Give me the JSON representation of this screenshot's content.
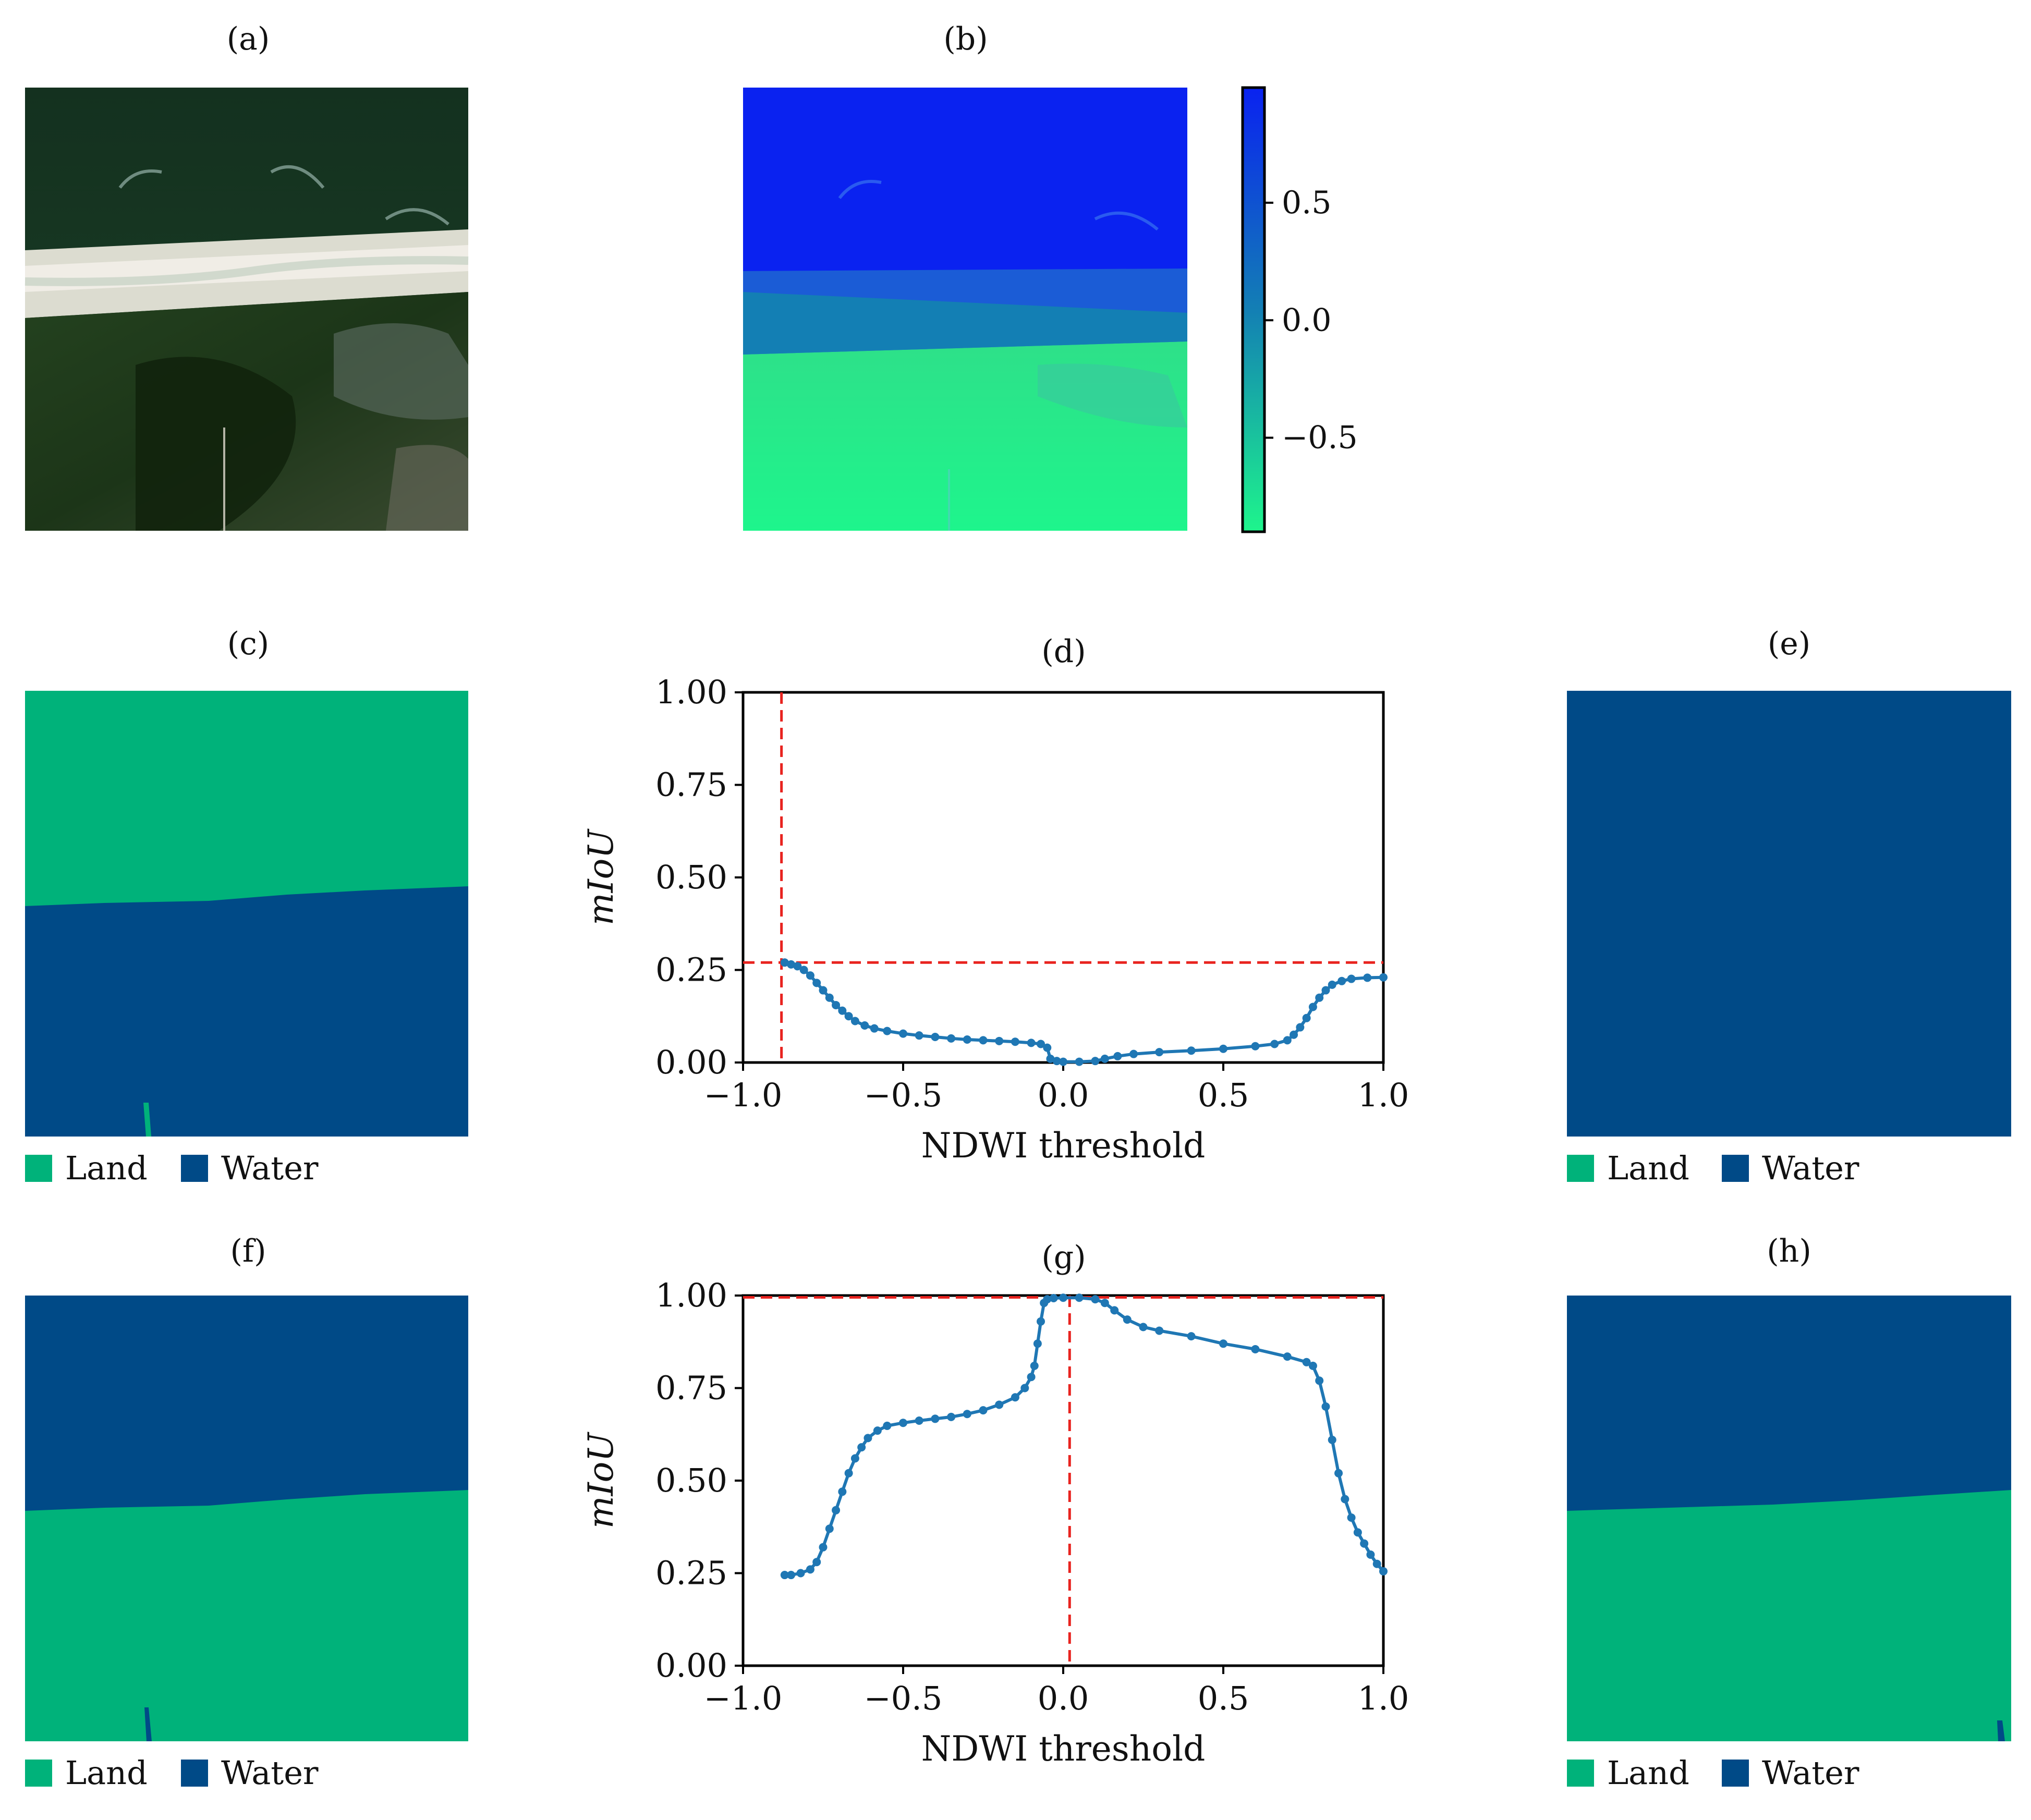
{
  "panels": {
    "a": {
      "label": "(a)"
    },
    "b": {
      "label": "(b)",
      "colorbar": {
        "ticks": [
          0.5,
          0.0,
          -0.5
        ],
        "tick_labels": [
          "0.5",
          "0.0",
          "−0.5"
        ],
        "range": [
          -0.9,
          0.99
        ]
      }
    },
    "c": {
      "label": "(c)",
      "legend": [
        "Land",
        "Water"
      ]
    },
    "d": {
      "label": "(d)"
    },
    "e": {
      "label": "(e)",
      "legend": [
        "Land",
        "Water"
      ]
    },
    "f": {
      "label": "(f)",
      "legend": [
        "Land",
        "Water"
      ]
    },
    "g": {
      "label": "(g)"
    },
    "h": {
      "label": "(h)",
      "legend": [
        "Land",
        "Water"
      ]
    }
  },
  "colors": {
    "land": "#00b27a",
    "water": "#004a87",
    "curve": "#1f77b4",
    "reference": "#e8231f",
    "ndwi_high": "#0a22f0",
    "ndwi_mid": "#137fb4",
    "ndwi_low": "#1ef58c"
  },
  "chart_data": [
    {
      "id": "d",
      "type": "line",
      "title": "(d)",
      "xlabel": "NDWI threshold",
      "ylabel": "mIoU",
      "xlim": [
        -1.0,
        1.0
      ],
      "ylim": [
        0.0,
        1.0
      ],
      "xticks": [
        -1.0,
        -0.5,
        0.0,
        0.5,
        1.0
      ],
      "xtick_labels": [
        "−1.0",
        "−0.5",
        "0.0",
        "0.5",
        "1.0"
      ],
      "yticks": [
        0.0,
        0.25,
        0.5,
        0.75,
        1.0
      ],
      "ytick_labels": [
        "0.00",
        "0.25",
        "0.50",
        "0.75",
        "1.00"
      ],
      "best_threshold": -0.88,
      "best_miou": 0.27,
      "points": [
        [
          -0.87,
          0.27
        ],
        [
          -0.85,
          0.265
        ],
        [
          -0.83,
          0.26
        ],
        [
          -0.81,
          0.25
        ],
        [
          -0.79,
          0.235
        ],
        [
          -0.77,
          0.215
        ],
        [
          -0.75,
          0.195
        ],
        [
          -0.73,
          0.175
        ],
        [
          -0.71,
          0.155
        ],
        [
          -0.69,
          0.14
        ],
        [
          -0.67,
          0.125
        ],
        [
          -0.65,
          0.112
        ],
        [
          -0.62,
          0.1
        ],
        [
          -0.59,
          0.092
        ],
        [
          -0.55,
          0.085
        ],
        [
          -0.5,
          0.078
        ],
        [
          -0.45,
          0.073
        ],
        [
          -0.4,
          0.069
        ],
        [
          -0.35,
          0.065
        ],
        [
          -0.3,
          0.062
        ],
        [
          -0.25,
          0.06
        ],
        [
          -0.2,
          0.058
        ],
        [
          -0.15,
          0.056
        ],
        [
          -0.1,
          0.053
        ],
        [
          -0.07,
          0.05
        ],
        [
          -0.05,
          0.04
        ],
        [
          -0.04,
          0.01
        ],
        [
          -0.02,
          0.004
        ],
        [
          0.0,
          0.002
        ],
        [
          0.05,
          0.002
        ],
        [
          0.1,
          0.004
        ],
        [
          0.13,
          0.01
        ],
        [
          0.17,
          0.017
        ],
        [
          0.22,
          0.023
        ],
        [
          0.3,
          0.028
        ],
        [
          0.4,
          0.032
        ],
        [
          0.5,
          0.037
        ],
        [
          0.6,
          0.044
        ],
        [
          0.66,
          0.05
        ],
        [
          0.7,
          0.06
        ],
        [
          0.72,
          0.075
        ],
        [
          0.74,
          0.095
        ],
        [
          0.76,
          0.12
        ],
        [
          0.78,
          0.15
        ],
        [
          0.8,
          0.175
        ],
        [
          0.82,
          0.195
        ],
        [
          0.84,
          0.21
        ],
        [
          0.87,
          0.22
        ],
        [
          0.9,
          0.226
        ],
        [
          0.95,
          0.229
        ],
        [
          1.0,
          0.23
        ]
      ]
    },
    {
      "id": "g",
      "type": "line",
      "title": "(g)",
      "xlabel": "NDWI threshold",
      "ylabel": "mIoU",
      "xlim": [
        -1.0,
        1.0
      ],
      "ylim": [
        0.0,
        1.0
      ],
      "xticks": [
        -1.0,
        -0.5,
        0.0,
        0.5,
        1.0
      ],
      "xtick_labels": [
        "−1.0",
        "−0.5",
        "0.0",
        "0.5",
        "1.0"
      ],
      "yticks": [
        0.0,
        0.25,
        0.5,
        0.75,
        1.0
      ],
      "ytick_labels": [
        "0.00",
        "0.25",
        "0.50",
        "0.75",
        "1.00"
      ],
      "best_threshold": 0.02,
      "best_miou": 0.995,
      "points": [
        [
          -0.87,
          0.245
        ],
        [
          -0.85,
          0.245
        ],
        [
          -0.82,
          0.25
        ],
        [
          -0.79,
          0.26
        ],
        [
          -0.77,
          0.28
        ],
        [
          -0.75,
          0.32
        ],
        [
          -0.73,
          0.37
        ],
        [
          -0.71,
          0.42
        ],
        [
          -0.69,
          0.47
        ],
        [
          -0.67,
          0.52
        ],
        [
          -0.65,
          0.56
        ],
        [
          -0.63,
          0.59
        ],
        [
          -0.61,
          0.615
        ],
        [
          -0.58,
          0.635
        ],
        [
          -0.55,
          0.648
        ],
        [
          -0.5,
          0.656
        ],
        [
          -0.45,
          0.662
        ],
        [
          -0.4,
          0.667
        ],
        [
          -0.35,
          0.672
        ],
        [
          -0.3,
          0.68
        ],
        [
          -0.25,
          0.69
        ],
        [
          -0.2,
          0.705
        ],
        [
          -0.15,
          0.725
        ],
        [
          -0.12,
          0.75
        ],
        [
          -0.1,
          0.78
        ],
        [
          -0.09,
          0.81
        ],
        [
          -0.08,
          0.87
        ],
        [
          -0.07,
          0.93
        ],
        [
          -0.06,
          0.98
        ],
        [
          -0.05,
          0.99
        ],
        [
          -0.03,
          0.993
        ],
        [
          0.0,
          0.994
        ],
        [
          0.05,
          0.994
        ],
        [
          0.1,
          0.99
        ],
        [
          0.13,
          0.98
        ],
        [
          0.16,
          0.96
        ],
        [
          0.2,
          0.935
        ],
        [
          0.25,
          0.915
        ],
        [
          0.3,
          0.905
        ],
        [
          0.4,
          0.89
        ],
        [
          0.5,
          0.87
        ],
        [
          0.6,
          0.855
        ],
        [
          0.7,
          0.835
        ],
        [
          0.76,
          0.82
        ],
        [
          0.78,
          0.81
        ],
        [
          0.8,
          0.77
        ],
        [
          0.82,
          0.7
        ],
        [
          0.84,
          0.61
        ],
        [
          0.86,
          0.52
        ],
        [
          0.88,
          0.45
        ],
        [
          0.9,
          0.4
        ],
        [
          0.92,
          0.36
        ],
        [
          0.94,
          0.33
        ],
        [
          0.96,
          0.3
        ],
        [
          0.98,
          0.275
        ],
        [
          1.0,
          0.255
        ]
      ]
    }
  ]
}
